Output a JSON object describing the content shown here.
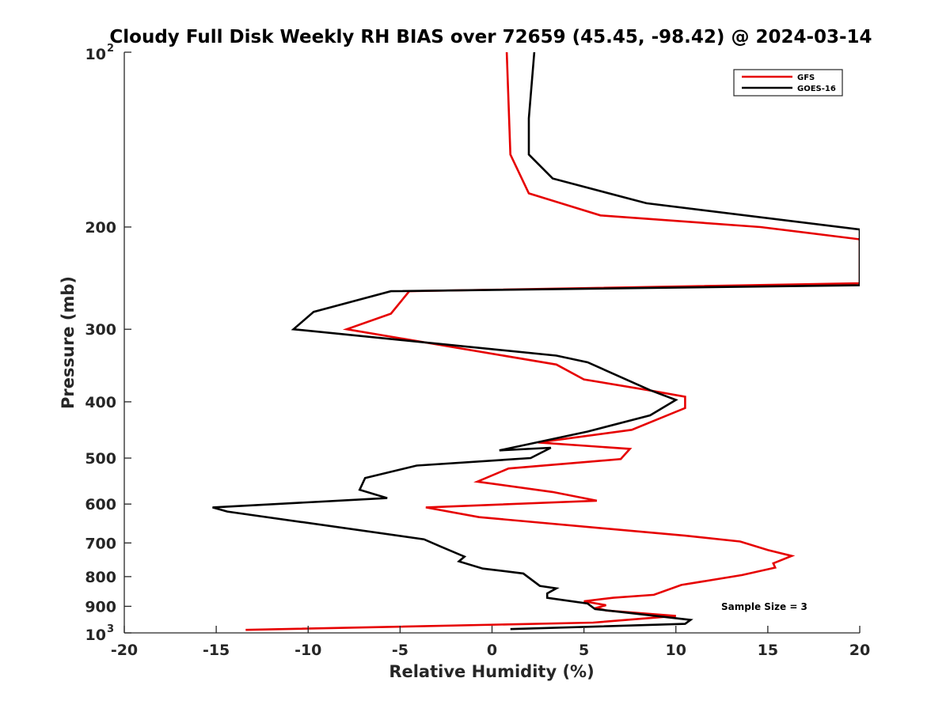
{
  "chart_data": {
    "type": "line",
    "title": "Cloudy Full Disk Weekly RH BIAS over 72659 (45.45, -98.42) @ 2024-03-14",
    "xlabel": "Relative Humidity (%)",
    "ylabel": "Pressure (mb)",
    "xlim": [
      -20,
      20
    ],
    "ylim": [
      100,
      1000
    ],
    "yscale": "log",
    "y_reversed": true,
    "grid": false,
    "legend_location": "top-right",
    "x_ticks": [
      "-20",
      "-15",
      "-10",
      "-5",
      "0",
      "5",
      "10",
      "15",
      "20"
    ],
    "y_ticks": [
      {
        "value": 100,
        "base": "10",
        "exp": "2"
      },
      {
        "value": 200,
        "label": "200"
      },
      {
        "value": 300,
        "label": "300"
      },
      {
        "value": 400,
        "label": "400"
      },
      {
        "value": 500,
        "label": "500"
      },
      {
        "value": 600,
        "label": "600"
      },
      {
        "value": 700,
        "label": "700"
      },
      {
        "value": 800,
        "label": "800"
      },
      {
        "value": 900,
        "label": "900"
      },
      {
        "value": 1000,
        "base": "10",
        "exp": "3"
      }
    ],
    "annotation": "Sample Size = 3",
    "series": [
      {
        "name": "GFS",
        "color": "#e60000",
        "points": [
          [
            0.8,
            100
          ],
          [
            1.0,
            150
          ],
          [
            2.0,
            175
          ],
          [
            5.9,
            191
          ],
          [
            14.6,
            200
          ],
          [
            20,
            210
          ],
          [
            20,
            250
          ],
          [
            -4.5,
            258
          ],
          [
            -5.5,
            282
          ],
          [
            -7.9,
            300
          ],
          [
            3.5,
            345
          ],
          [
            5.0,
            366
          ],
          [
            8.5,
            382
          ],
          [
            10.5,
            392
          ],
          [
            10.5,
            410
          ],
          [
            7.6,
            447
          ],
          [
            2.5,
            470
          ],
          [
            7.5,
            482
          ],
          [
            7.0,
            502
          ],
          [
            0.9,
            521
          ],
          [
            -0.8,
            549
          ],
          [
            3.3,
            572
          ],
          [
            5.7,
            592
          ],
          [
            -3.6,
            608
          ],
          [
            -0.7,
            632
          ],
          [
            10.5,
            680
          ],
          [
            13.5,
            696
          ],
          [
            15.0,
            720
          ],
          [
            16.3,
            737
          ],
          [
            15.3,
            759
          ],
          [
            15.4,
            772
          ],
          [
            13.6,
            795
          ],
          [
            10.3,
            827
          ],
          [
            8.8,
            860
          ],
          [
            6.6,
            870
          ],
          [
            5.0,
            882
          ],
          [
            6.2,
            896
          ],
          [
            5.7,
            905
          ],
          [
            6.2,
            915
          ],
          [
            10.0,
            935
          ],
          [
            5.5,
            960
          ],
          [
            -13.4,
            988
          ]
        ]
      },
      {
        "name": "GOES-16",
        "color": "#000000",
        "points": [
          [
            2.3,
            100
          ],
          [
            2.0,
            130
          ],
          [
            2.0,
            150
          ],
          [
            3.3,
            165
          ],
          [
            8.4,
            182
          ],
          [
            20,
            202
          ],
          [
            20,
            252
          ],
          [
            -5.5,
            258
          ],
          [
            -9.7,
            280
          ],
          [
            -10.8,
            300
          ],
          [
            3.5,
            333
          ],
          [
            5.2,
            342
          ],
          [
            8.6,
            382
          ],
          [
            10.0,
            397
          ],
          [
            8.6,
            422
          ],
          [
            5.2,
            450
          ],
          [
            0.4,
            485
          ],
          [
            3.2,
            480
          ],
          [
            2.1,
            500
          ],
          [
            -4.1,
            515
          ],
          [
            -6.9,
            541
          ],
          [
            -7.2,
            567
          ],
          [
            -5.7,
            586
          ],
          [
            -15.2,
            608
          ],
          [
            -14.4,
            618
          ],
          [
            -3.7,
            690
          ],
          [
            -2.8,
            710
          ],
          [
            -1.5,
            739
          ],
          [
            -1.8,
            753
          ],
          [
            -0.5,
            775
          ],
          [
            1.7,
            790
          ],
          [
            2.6,
            830
          ],
          [
            3.5,
            838
          ],
          [
            3.0,
            855
          ],
          [
            3.0,
            870
          ],
          [
            3.2,
            872
          ],
          [
            5.2,
            890
          ],
          [
            5.6,
            910
          ],
          [
            10.8,
            950
          ],
          [
            10.5,
            965
          ],
          [
            1.0,
            985
          ]
        ]
      }
    ]
  }
}
